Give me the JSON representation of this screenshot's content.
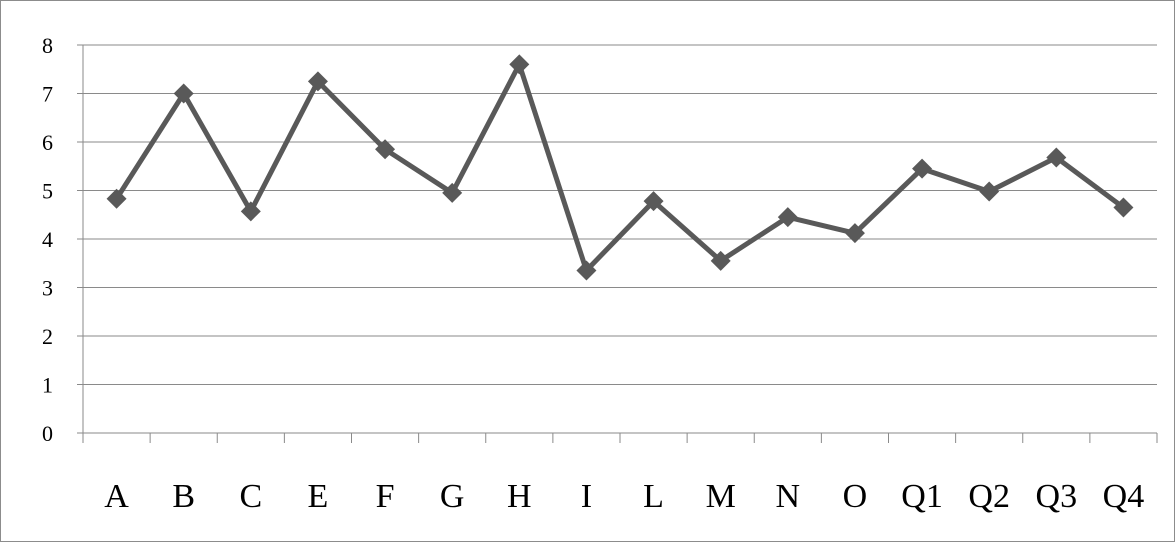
{
  "chart_data": {
    "type": "line",
    "title": "",
    "xlabel": "",
    "ylabel": "",
    "categories": [
      "A",
      "B",
      "C",
      "E",
      "F",
      "G",
      "H",
      "I",
      "L",
      "M",
      "N",
      "O",
      "Q1",
      "Q2",
      "Q3",
      "Q4"
    ],
    "series": [
      {
        "values": [
          4.83,
          7.0,
          4.57,
          7.25,
          5.85,
          4.95,
          7.6,
          3.35,
          4.78,
          3.55,
          4.45,
          4.12,
          5.45,
          4.98,
          5.68,
          4.65
        ]
      }
    ],
    "ylim": [
      0,
      8
    ],
    "yticks": [
      0,
      1,
      2,
      3,
      4,
      5,
      6,
      7,
      8
    ],
    "grid": true,
    "legend": "none",
    "marker": "diamond",
    "colors": {
      "series": "#595959",
      "grid": "#8a8a8a",
      "text": "#000000"
    }
  }
}
